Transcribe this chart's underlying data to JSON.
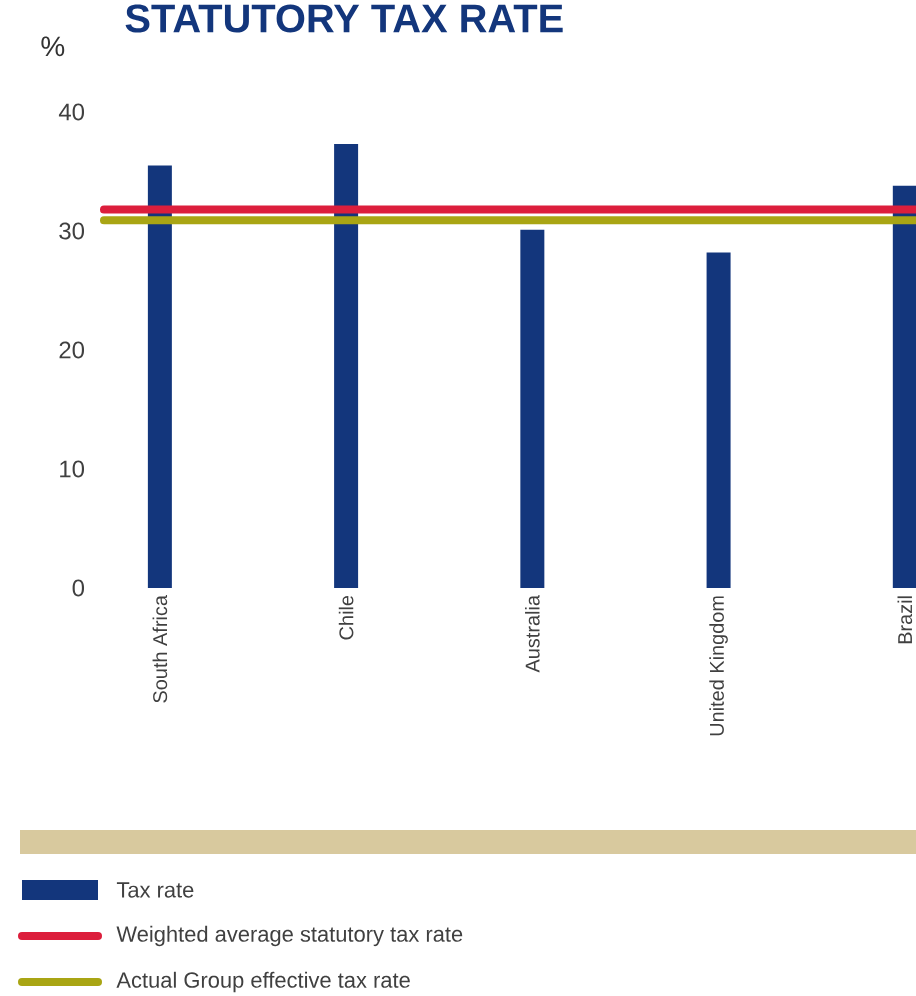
{
  "chart_data": {
    "type": "bar",
    "title": "STATUTORY TAX RATE",
    "ylabel": "%",
    "categories": [
      "South Africa",
      "Chile",
      "Australia",
      "United Kingdom",
      "Brazil"
    ],
    "series": [
      {
        "name": "Tax rate",
        "color": "#13367c",
        "values": [
          35.5,
          37.3,
          30.1,
          28.2,
          33.8
        ]
      }
    ],
    "ref_lines": [
      {
        "axis": "y",
        "value": 31.8,
        "label": "Weighted average statutory tax rate",
        "color": "#dc1e3c"
      },
      {
        "axis": "y",
        "value": 30.9,
        "label": "Actual Group effective tax rate",
        "color": "#a9a514"
      }
    ],
    "ylim": [
      0,
      40
    ],
    "yticks": [
      0,
      10,
      20,
      30,
      40
    ],
    "legend": "bottom"
  }
}
